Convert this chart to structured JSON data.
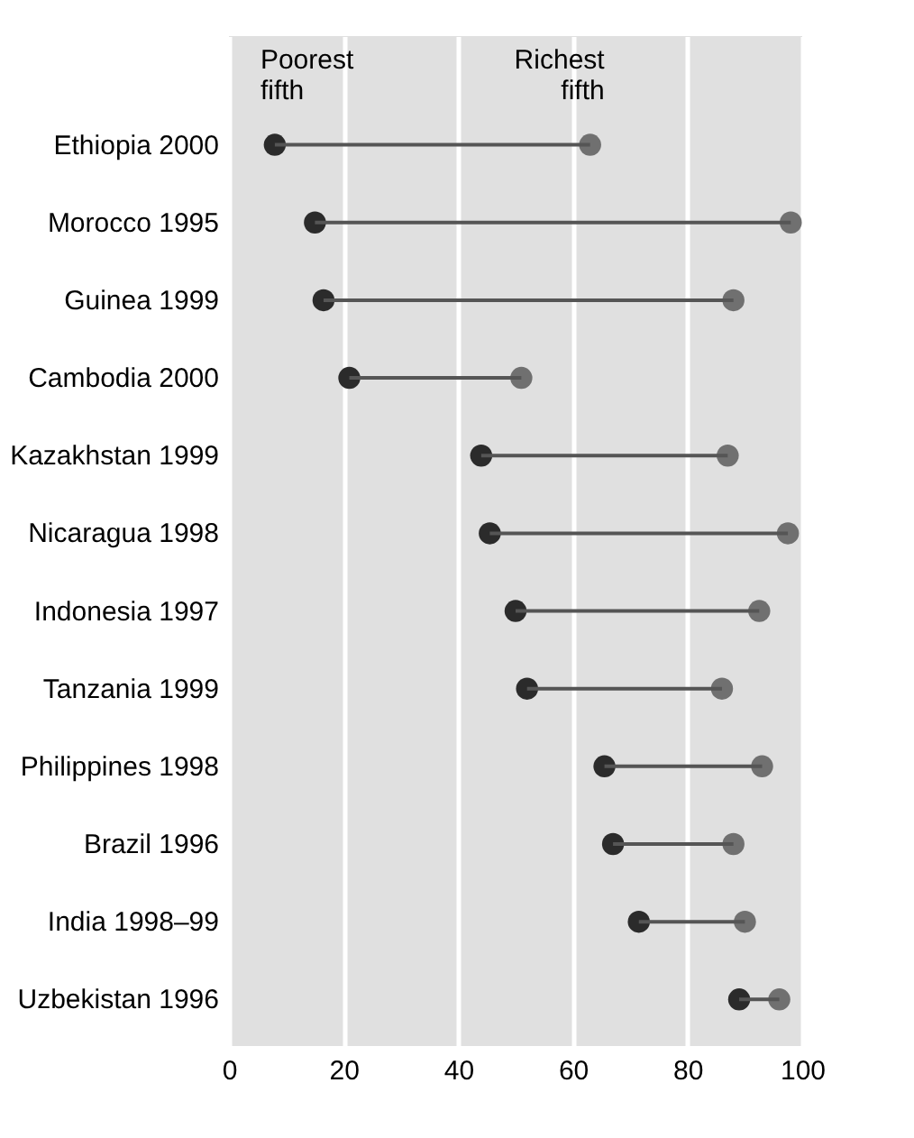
{
  "chart_data": {
    "type": "scatter",
    "orientation": "horizontal",
    "categories": [
      "Ethiopia 2000",
      "Morocco 1995",
      "Guinea 1999",
      "Cambodia 2000",
      "Kazakhstan 1999",
      "Nicaragua 1998",
      "Indonesia 1997",
      "Tanzania 1999",
      "Philippines 1998",
      "Brazil 1996",
      "India 1998–99",
      "Uzbekistan 1996"
    ],
    "series": [
      {
        "name": "Poorest fifth",
        "color": "#2b2b2b",
        "values": [
          8,
          15,
          16.5,
          21,
          44,
          45.5,
          50,
          52,
          65.5,
          67,
          71.5,
          89
        ]
      },
      {
        "name": "Richest fifth",
        "color": "#707070",
        "values": [
          63,
          98,
          88,
          51,
          87,
          97.5,
          92.5,
          86,
          93,
          88,
          90,
          96
        ]
      }
    ],
    "xlim": [
      0,
      100
    ],
    "xticks": [
      0,
      20,
      40,
      60,
      80,
      100
    ],
    "grid": "x",
    "marker": "circle",
    "legend": "top left"
  }
}
